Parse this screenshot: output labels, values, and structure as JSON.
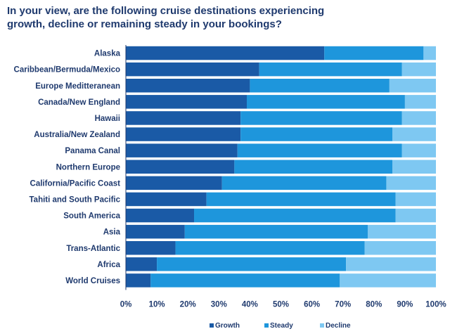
{
  "title_lines": [
    "In your view, are the following cruise destinations experiencing",
    "growth, decline or remaining steady in your bookings?"
  ],
  "chart_data": {
    "type": "bar",
    "orientation": "horizontal",
    "stacked": true,
    "categories": [
      "Alaska",
      "Caribbean/Bermuda/Mexico",
      "Europe Meditteranean",
      "Canada/New England",
      "Hawaii",
      "Australia/New Zealand",
      "Panama Canal",
      "Northern Europe",
      "California/Pacific Coast",
      "Tahiti and South Pacific",
      "South America",
      "Asia",
      "Trans-Atlantic",
      "Africa",
      "World Cruises"
    ],
    "series": [
      {
        "name": "Growth",
        "color": "#1a5aa6",
        "values": [
          64,
          43,
          40,
          39,
          37,
          37,
          36,
          35,
          31,
          26,
          22,
          19,
          16,
          10,
          8
        ]
      },
      {
        "name": "Steady",
        "color": "#1e96dc",
        "values": [
          32,
          46,
          45,
          51,
          52,
          49,
          53,
          51,
          53,
          61,
          65,
          59,
          61,
          61,
          61
        ]
      },
      {
        "name": "Decline",
        "color": "#7ec8f2",
        "values": [
          4,
          11,
          15,
          10,
          11,
          14,
          11,
          14,
          16,
          13,
          13,
          22,
          23,
          29,
          31
        ]
      }
    ],
    "xlim": [
      0,
      100
    ],
    "x_ticks": [
      "0%",
      "10%",
      "20%",
      "30%",
      "40%",
      "50%",
      "60%",
      "70%",
      "80%",
      "90%",
      "100%"
    ],
    "legend": {
      "position": "bottom",
      "labels": [
        "Growth",
        "Steady",
        "Decline"
      ]
    },
    "grid": false
  }
}
